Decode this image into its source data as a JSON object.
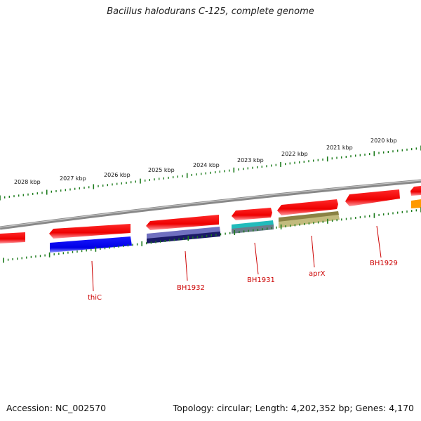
{
  "title": "Bacillus halodurans C-125, complete genome",
  "footer": {
    "accession": "Accession: NC_002570",
    "topology": "Topology: circular; Length: 4,202,352 bp; Genes: 4,170"
  },
  "scale_labels": [
    "2028 kbp",
    "2027 kbp",
    "2026 kbp",
    "2025 kbp",
    "2024 kbp",
    "2023 kbp",
    "2022 kbp",
    "2021 kbp",
    "2020 kbp"
  ],
  "gene_labels": [
    "thiC",
    "BH1932",
    "BH1931",
    "aprX",
    "BH1929"
  ],
  "colors": {
    "backbone": "#888888",
    "forward_gene": "#ff0000",
    "tick": "#1a7a1a",
    "label": "#cc0000",
    "thiC": "#0000ee",
    "BH1932": "#22226e",
    "BH1931": "#22bbbb",
    "aprX": "#b8b070",
    "orange": "#ff9900"
  }
}
